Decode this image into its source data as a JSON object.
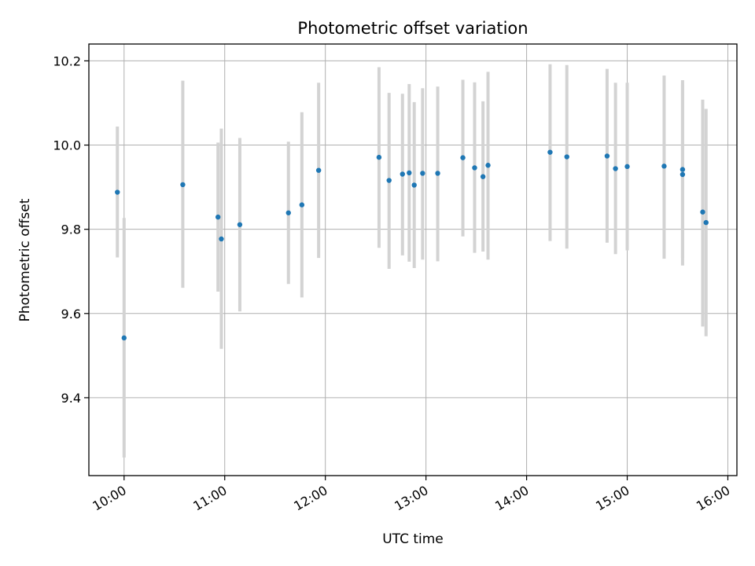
{
  "chart_data": {
    "type": "scatter",
    "title": "Photometric offset variation",
    "xlabel": "UTC time",
    "ylabel": "Photometric offset",
    "x_unit": "hours UTC",
    "xlim": [
      9.65,
      16.09
    ],
    "ylim": [
      9.215,
      10.24
    ],
    "xticks": [
      {
        "value": 10,
        "label": "10:00"
      },
      {
        "value": 11,
        "label": "11:00"
      },
      {
        "value": 12,
        "label": "12:00"
      },
      {
        "value": 13,
        "label": "13:00"
      },
      {
        "value": 14,
        "label": "14:00"
      },
      {
        "value": 15,
        "label": "15:00"
      },
      {
        "value": 16,
        "label": "16:00"
      }
    ],
    "yticks": [
      {
        "value": 9.4,
        "label": "9.4"
      },
      {
        "value": 9.6,
        "label": "9.6"
      },
      {
        "value": 9.8,
        "label": "9.8"
      },
      {
        "value": 10.0,
        "label": "10.0"
      },
      {
        "value": 10.2,
        "label": "10.2"
      }
    ],
    "grid": true,
    "point_color": "#1f77b4",
    "errorbar_color": "#d3d3d3",
    "points": [
      {
        "x": "09:56",
        "y": 9.888,
        "low": 9.733,
        "high": 10.044
      },
      {
        "x": "10:00",
        "y": 9.542,
        "low": 9.258,
        "high": 9.827
      },
      {
        "x": "10:35",
        "y": 9.906,
        "low": 9.661,
        "high": 10.153
      },
      {
        "x": "10:56",
        "y": 9.829,
        "low": 9.652,
        "high": 10.006
      },
      {
        "x": "10:58",
        "y": 9.777,
        "low": 9.516,
        "high": 10.039
      },
      {
        "x": "11:09",
        "y": 9.811,
        "low": 9.605,
        "high": 10.017
      },
      {
        "x": "11:38",
        "y": 9.839,
        "low": 9.67,
        "high": 10.008
      },
      {
        "x": "11:46",
        "y": 9.858,
        "low": 9.638,
        "high": 10.078
      },
      {
        "x": "11:56",
        "y": 9.94,
        "low": 9.732,
        "high": 10.148
      },
      {
        "x": "12:32",
        "y": 9.971,
        "low": 9.756,
        "high": 10.185
      },
      {
        "x": "12:38",
        "y": 9.916,
        "low": 9.706,
        "high": 10.124
      },
      {
        "x": "12:46",
        "y": 9.931,
        "low": 9.738,
        "high": 10.122
      },
      {
        "x": "12:50",
        "y": 9.934,
        "low": 9.723,
        "high": 10.145
      },
      {
        "x": "12:53",
        "y": 9.905,
        "low": 9.708,
        "high": 10.102
      },
      {
        "x": "12:58",
        "y": 9.933,
        "low": 9.728,
        "high": 10.135
      },
      {
        "x": "13:07",
        "y": 9.933,
        "low": 9.724,
        "high": 10.139
      },
      {
        "x": "13:22",
        "y": 9.97,
        "low": 9.783,
        "high": 10.155
      },
      {
        "x": "13:29",
        "y": 9.946,
        "low": 9.744,
        "high": 10.149
      },
      {
        "x": "13:34",
        "y": 9.925,
        "low": 9.747,
        "high": 10.104
      },
      {
        "x": "13:37",
        "y": 9.952,
        "low": 9.728,
        "high": 10.174
      },
      {
        "x": "14:14",
        "y": 9.983,
        "low": 9.772,
        "high": 10.192
      },
      {
        "x": "14:24",
        "y": 9.972,
        "low": 9.754,
        "high": 10.19
      },
      {
        "x": "14:48",
        "y": 9.974,
        "low": 9.768,
        "high": 10.181
      },
      {
        "x": "14:53",
        "y": 9.944,
        "low": 9.741,
        "high": 10.148
      },
      {
        "x": "15:00",
        "y": 9.949,
        "low": 9.75,
        "high": 10.148
      },
      {
        "x": "15:22",
        "y": 9.95,
        "low": 9.73,
        "high": 10.165
      },
      {
        "x": "15:33",
        "y": 9.942,
        "low": 9.731,
        "high": 10.154
      },
      {
        "x": "15:33",
        "y": 9.93,
        "low": 9.714,
        "high": 10.144
      },
      {
        "x": "15:45",
        "y": 9.841,
        "low": 9.569,
        "high": 10.108
      },
      {
        "x": "15:47",
        "y": 9.816,
        "low": 9.546,
        "high": 10.086
      }
    ]
  }
}
